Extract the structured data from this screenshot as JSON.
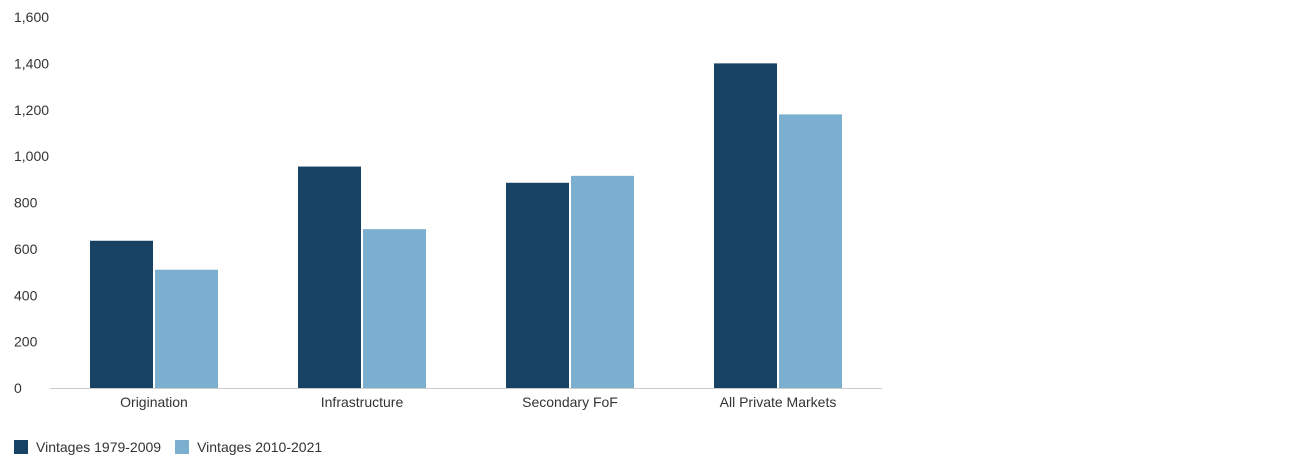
{
  "chart_data": {
    "type": "bar",
    "categories": [
      "Origination",
      "Infrastructure",
      "Secondary FoF",
      "All Private Markets"
    ],
    "series": [
      {
        "name": "Vintages 1979-2009",
        "color": "#174263",
        "values": [
          635,
          955,
          885,
          1400
        ]
      },
      {
        "name": "Vintages 2010-2021",
        "color": "#7bafcf",
        "values": [
          510,
          685,
          915,
          1180
        ]
      }
    ],
    "ylim": [
      0,
      1600
    ],
    "yticks": [
      "0",
      "200",
      "400",
      "600",
      "800",
      "1,000",
      "1,200",
      "1,400",
      "1,600"
    ],
    "title": "",
    "xlabel": "",
    "ylabel": "",
    "grid": false,
    "legend_position": "bottom-left"
  }
}
